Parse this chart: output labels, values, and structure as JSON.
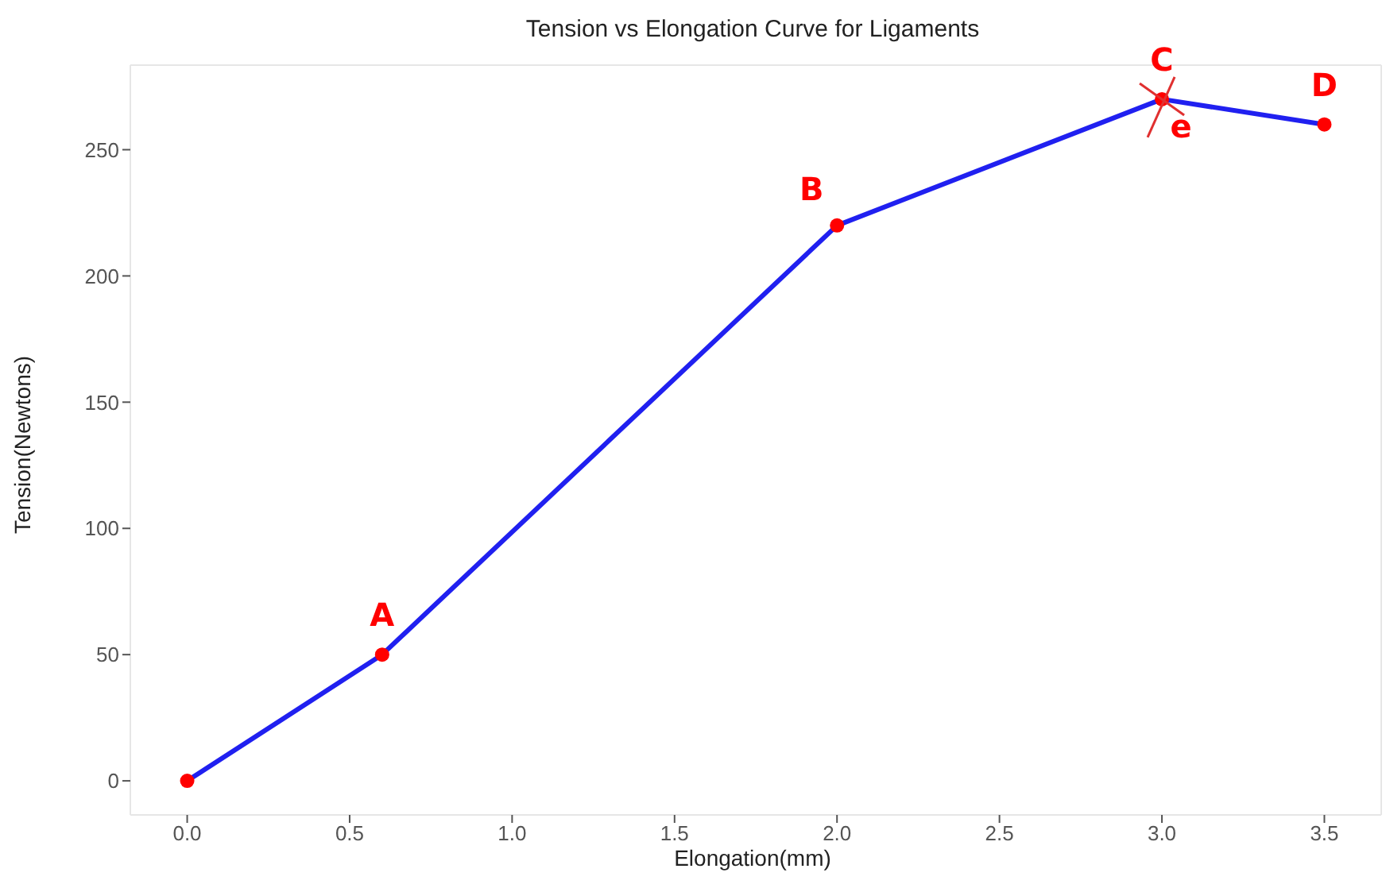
{
  "chart_data": {
    "type": "line",
    "title": "Tension vs Elongation Curve for Ligaments",
    "xlabel": "Elongation(mm)",
    "ylabel": "Tension(Newtons)",
    "x": [
      0,
      0.6,
      2.0,
      3.0,
      3.5
    ],
    "series": [
      {
        "color": "#2020f0",
        "values": [
          0,
          50,
          220,
          270,
          260
        ],
        "marker": "none"
      },
      {
        "type": "scatter",
        "color": "#ff0000",
        "values": [
          0,
          50,
          220,
          270,
          260
        ],
        "marker": "circle"
      }
    ],
    "xlim": [
      -0.175,
      3.675
    ],
    "xticks": [
      {
        "value": 0,
        "label": "0.0"
      },
      {
        "value": 0.5,
        "label": "0.5"
      },
      {
        "value": 1,
        "label": "1.0"
      },
      {
        "value": 1.5,
        "label": "1.5"
      },
      {
        "value": 2,
        "label": "2.0"
      },
      {
        "value": 2.5,
        "label": "2.5"
      },
      {
        "value": 3,
        "label": "3.0"
      },
      {
        "value": 3.5,
        "label": "3.5"
      }
    ],
    "ylim": [
      -13.5,
      283.5
    ],
    "yticks": [
      0,
      50,
      100,
      150,
      200,
      250
    ],
    "annotations": [
      {
        "text": "A",
        "x": 0.6,
        "y": 50
      },
      {
        "text": "B",
        "x": 2.0,
        "y": 220
      },
      {
        "text": "C",
        "x": 3.0,
        "y": 270
      },
      {
        "text": "D",
        "x": 3.5,
        "y": 260
      },
      {
        "text": "e",
        "x": 3.0,
        "y": 270
      }
    ],
    "grid": false
  }
}
